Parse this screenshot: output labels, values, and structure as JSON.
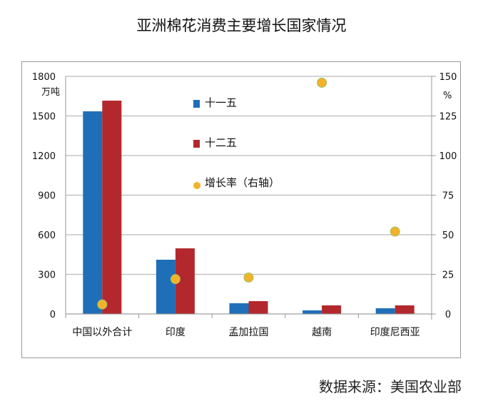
{
  "chart_data": {
    "type": "bar",
    "title": "亚洲棉花消费主要增长国家情况",
    "categories": [
      "中国以外合计",
      "印度",
      "孟加拉国",
      "越南",
      "印度尼西亚"
    ],
    "series": [
      {
        "name": "十一五",
        "values": [
          1535,
          411,
          81,
          27,
          43
        ],
        "color": "#1f6fb8",
        "axis": "left"
      },
      {
        "name": "十二五",
        "values": [
          1616,
          497,
          97,
          65,
          65
        ],
        "color": "#b3282d",
        "axis": "left"
      },
      {
        "name": "增长率（右轴）",
        "type": "scatter",
        "values": [
          6,
          22,
          23,
          146,
          52
        ],
        "color": "#f3b229",
        "axis": "right"
      }
    ],
    "ylabel": "万吨",
    "ylim": [
      0,
      1800
    ],
    "yticks": [
      "0",
      "300",
      "600",
      "900",
      "1200",
      "1500",
      "1800"
    ],
    "y2label": "%",
    "y2lim": [
      0,
      150
    ],
    "y2ticks": [
      "0",
      "25",
      "50",
      "75",
      "100",
      "125",
      "150"
    ],
    "grid": true,
    "legend": "top-center"
  },
  "source": "数据来源：美国农业部"
}
